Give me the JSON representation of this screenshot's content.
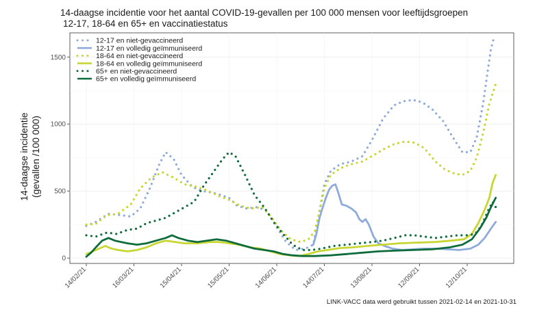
{
  "chart_data": {
    "type": "line",
    "title": "14-daagse incidentie voor het aantal COVID-19-gevallen per 100 000 mensen voor leeftijdsgroepen",
    "subtitle": "12-17, 18-64 en 65+ en vaccinatiestatus",
    "ylabel_line1": "14-daagse incidentie",
    "ylabel_line2": "(gevallen /100 000)",
    "xlabel": "",
    "caption": "LINK-VACC data werd gebruikt tussen 2021-02-14 en  2021-10-31",
    "xlim": [
      "2021-02-14",
      "2021-10-31"
    ],
    "ylim": [
      -40,
      1680
    ],
    "yticks": [
      0,
      500,
      1000,
      1500
    ],
    "xticks": [
      "2021-02-14",
      "2021-03-16",
      "2021-04-15",
      "2021-05-15",
      "2021-06-14",
      "2021-07-14",
      "2021-08-13",
      "2021-09-12",
      "2021-10-12"
    ],
    "xtick_labels": [
      "14/02/21",
      "16/03/21",
      "15/04/21",
      "15/05/21",
      "14/06/21",
      "14/07/21",
      "13/08/21",
      "12/09/21",
      "12/10/21"
    ],
    "grid": true,
    "legend_position": "top-left",
    "series": [
      {
        "name": "12-17 en niet-gevaccineerd",
        "color": "#8eaadb",
        "style": "dotted",
        "points": [
          [
            "2021-02-14",
            240
          ],
          [
            "2021-02-20",
            270
          ],
          [
            "2021-02-28",
            330
          ],
          [
            "2021-03-08",
            320
          ],
          [
            "2021-03-14",
            310
          ],
          [
            "2021-03-20",
            370
          ],
          [
            "2021-03-26",
            520
          ],
          [
            "2021-04-01",
            700
          ],
          [
            "2021-04-05",
            790
          ],
          [
            "2021-04-10",
            740
          ],
          [
            "2021-04-15",
            620
          ],
          [
            "2021-04-22",
            530
          ],
          [
            "2021-04-28",
            500
          ],
          [
            "2021-05-04",
            490
          ],
          [
            "2021-05-10",
            470
          ],
          [
            "2021-05-15",
            450
          ],
          [
            "2021-05-20",
            390
          ],
          [
            "2021-05-26",
            370
          ],
          [
            "2021-06-02",
            380
          ],
          [
            "2021-06-08",
            350
          ],
          [
            "2021-06-14",
            230
          ],
          [
            "2021-06-20",
            120
          ],
          [
            "2021-06-26",
            60
          ],
          [
            "2021-07-02",
            70
          ],
          [
            "2021-07-07",
            100
          ],
          [
            "2021-07-11",
            350
          ],
          [
            "2021-07-14",
            550
          ],
          [
            "2021-07-18",
            650
          ],
          [
            "2021-07-24",
            700
          ],
          [
            "2021-07-31",
            720
          ],
          [
            "2021-08-07",
            760
          ],
          [
            "2021-08-13",
            880
          ],
          [
            "2021-08-20",
            1040
          ],
          [
            "2021-08-27",
            1140
          ],
          [
            "2021-09-02",
            1170
          ],
          [
            "2021-09-08",
            1180
          ],
          [
            "2021-09-14",
            1160
          ],
          [
            "2021-09-20",
            1110
          ],
          [
            "2021-09-27",
            1020
          ],
          [
            "2021-10-03",
            900
          ],
          [
            "2021-10-09",
            790
          ],
          [
            "2021-10-14",
            790
          ],
          [
            "2021-10-18",
            900
          ],
          [
            "2021-10-22",
            1150
          ],
          [
            "2021-10-25",
            1400
          ],
          [
            "2021-10-27",
            1560
          ],
          [
            "2021-10-29",
            1650
          ]
        ]
      },
      {
        "name": "12-17 en volledig geïmmuniseerd",
        "color": "#8eaadb",
        "style": "solid",
        "points": [
          [
            "2021-07-07",
            100
          ],
          [
            "2021-07-09",
            180
          ],
          [
            "2021-07-11",
            300
          ],
          [
            "2021-07-13",
            380
          ],
          [
            "2021-07-15",
            450
          ],
          [
            "2021-07-17",
            510
          ],
          [
            "2021-07-19",
            540
          ],
          [
            "2021-07-21",
            550
          ],
          [
            "2021-07-23",
            480
          ],
          [
            "2021-07-25",
            400
          ],
          [
            "2021-07-28",
            390
          ],
          [
            "2021-07-31",
            370
          ],
          [
            "2021-08-03",
            340
          ],
          [
            "2021-08-05",
            290
          ],
          [
            "2021-08-07",
            270
          ],
          [
            "2021-08-09",
            290
          ],
          [
            "2021-08-11",
            250
          ],
          [
            "2021-08-14",
            160
          ],
          [
            "2021-08-17",
            110
          ],
          [
            "2021-08-21",
            90
          ],
          [
            "2021-08-26",
            70
          ],
          [
            "2021-09-01",
            60
          ],
          [
            "2021-09-08",
            65
          ],
          [
            "2021-09-15",
            70
          ],
          [
            "2021-09-22",
            70
          ],
          [
            "2021-09-30",
            65
          ],
          [
            "2021-10-07",
            60
          ],
          [
            "2021-10-14",
            70
          ],
          [
            "2021-10-19",
            100
          ],
          [
            "2021-10-23",
            150
          ],
          [
            "2021-10-27",
            220
          ],
          [
            "2021-10-30",
            270
          ]
        ]
      },
      {
        "name": "18-64 en niet-gevaccineerd",
        "color": "#c7d630",
        "style": "dotted",
        "points": [
          [
            "2021-02-14",
            250
          ],
          [
            "2021-02-20",
            255
          ],
          [
            "2021-02-27",
            320
          ],
          [
            "2021-03-06",
            330
          ],
          [
            "2021-03-14",
            400
          ],
          [
            "2021-03-20",
            520
          ],
          [
            "2021-03-27",
            600
          ],
          [
            "2021-04-03",
            640
          ],
          [
            "2021-04-10",
            600
          ],
          [
            "2021-04-17",
            550
          ],
          [
            "2021-04-25",
            530
          ],
          [
            "2021-05-02",
            500
          ],
          [
            "2021-05-09",
            460
          ],
          [
            "2021-05-16",
            430
          ],
          [
            "2021-05-22",
            390
          ],
          [
            "2021-05-29",
            370
          ],
          [
            "2021-06-05",
            380
          ],
          [
            "2021-06-11",
            300
          ],
          [
            "2021-06-17",
            200
          ],
          [
            "2021-06-23",
            140
          ],
          [
            "2021-06-29",
            120
          ],
          [
            "2021-07-04",
            140
          ],
          [
            "2021-07-08",
            200
          ],
          [
            "2021-07-11",
            350
          ],
          [
            "2021-07-14",
            520
          ],
          [
            "2021-07-18",
            620
          ],
          [
            "2021-07-24",
            670
          ],
          [
            "2021-07-31",
            700
          ],
          [
            "2021-08-07",
            720
          ],
          [
            "2021-08-13",
            760
          ],
          [
            "2021-08-20",
            810
          ],
          [
            "2021-08-27",
            850
          ],
          [
            "2021-09-03",
            870
          ],
          [
            "2021-09-09",
            860
          ],
          [
            "2021-09-15",
            820
          ],
          [
            "2021-09-22",
            720
          ],
          [
            "2021-09-28",
            660
          ],
          [
            "2021-10-04",
            630
          ],
          [
            "2021-10-09",
            620
          ],
          [
            "2021-10-14",
            650
          ],
          [
            "2021-10-18",
            750
          ],
          [
            "2021-10-22",
            930
          ],
          [
            "2021-10-26",
            1150
          ],
          [
            "2021-10-30",
            1300
          ]
        ]
      },
      {
        "name": "18-64 en volledig geïmmuniseerd",
        "color": "#c7d630",
        "style": "solid",
        "points": [
          [
            "2021-02-14",
            30
          ],
          [
            "2021-02-18",
            50
          ],
          [
            "2021-02-22",
            70
          ],
          [
            "2021-02-26",
            90
          ],
          [
            "2021-03-02",
            70
          ],
          [
            "2021-03-06",
            60
          ],
          [
            "2021-03-12",
            50
          ],
          [
            "2021-03-18",
            60
          ],
          [
            "2021-03-24",
            80
          ],
          [
            "2021-03-30",
            110
          ],
          [
            "2021-04-05",
            130
          ],
          [
            "2021-04-11",
            120
          ],
          [
            "2021-04-17",
            110
          ],
          [
            "2021-04-25",
            110
          ],
          [
            "2021-05-03",
            120
          ],
          [
            "2021-05-09",
            120
          ],
          [
            "2021-05-15",
            110
          ],
          [
            "2021-05-21",
            100
          ],
          [
            "2021-05-28",
            80
          ],
          [
            "2021-06-04",
            70
          ],
          [
            "2021-06-10",
            50
          ],
          [
            "2021-06-16",
            30
          ],
          [
            "2021-06-22",
            20
          ],
          [
            "2021-06-28",
            15
          ],
          [
            "2021-07-04",
            30
          ],
          [
            "2021-07-10",
            50
          ],
          [
            "2021-07-16",
            60
          ],
          [
            "2021-07-24",
            75
          ],
          [
            "2021-08-01",
            80
          ],
          [
            "2021-08-10",
            90
          ],
          [
            "2021-08-20",
            100
          ],
          [
            "2021-08-30",
            110
          ],
          [
            "2021-09-10",
            115
          ],
          [
            "2021-09-22",
            120
          ],
          [
            "2021-10-02",
            130
          ],
          [
            "2021-10-10",
            140
          ],
          [
            "2021-10-15",
            180
          ],
          [
            "2021-10-19",
            260
          ],
          [
            "2021-10-23",
            360
          ],
          [
            "2021-10-26",
            450
          ],
          [
            "2021-10-28",
            560
          ],
          [
            "2021-10-30",
            620
          ]
        ]
      },
      {
        "name": "65+ en niet-gevaccineerd",
        "color": "#0e6b3c",
        "style": "dotted",
        "points": [
          [
            "2021-02-14",
            170
          ],
          [
            "2021-02-20",
            160
          ],
          [
            "2021-02-27",
            190
          ],
          [
            "2021-03-05",
            180
          ],
          [
            "2021-03-12",
            210
          ],
          [
            "2021-03-18",
            220
          ],
          [
            "2021-03-24",
            260
          ],
          [
            "2021-03-30",
            280
          ],
          [
            "2021-04-05",
            300
          ],
          [
            "2021-04-11",
            340
          ],
          [
            "2021-04-17",
            380
          ],
          [
            "2021-04-23",
            420
          ],
          [
            "2021-04-29",
            540
          ],
          [
            "2021-05-05",
            640
          ],
          [
            "2021-05-11",
            740
          ],
          [
            "2021-05-15",
            790
          ],
          [
            "2021-05-19",
            760
          ],
          [
            "2021-05-25",
            620
          ],
          [
            "2021-05-31",
            470
          ],
          [
            "2021-06-06",
            380
          ],
          [
            "2021-06-12",
            270
          ],
          [
            "2021-06-18",
            180
          ],
          [
            "2021-06-24",
            100
          ],
          [
            "2021-06-30",
            60
          ],
          [
            "2021-07-06",
            60
          ],
          [
            "2021-07-12",
            70
          ],
          [
            "2021-07-20",
            90
          ],
          [
            "2021-07-28",
            100
          ],
          [
            "2021-08-05",
            110
          ],
          [
            "2021-08-13",
            120
          ],
          [
            "2021-08-20",
            130
          ],
          [
            "2021-08-27",
            150
          ],
          [
            "2021-09-03",
            170
          ],
          [
            "2021-09-09",
            170
          ],
          [
            "2021-09-15",
            160
          ],
          [
            "2021-09-22",
            150
          ],
          [
            "2021-09-29",
            160
          ],
          [
            "2021-10-06",
            170
          ],
          [
            "2021-10-12",
            170
          ],
          [
            "2021-10-17",
            180
          ],
          [
            "2021-10-21",
            240
          ],
          [
            "2021-10-25",
            350
          ],
          [
            "2021-10-28",
            420
          ],
          [
            "2021-10-30",
            380
          ]
        ]
      },
      {
        "name": "65+ en volledig geïmmuniseerd",
        "color": "#0e6b3c",
        "style": "solid",
        "points": [
          [
            "2021-02-14",
            10
          ],
          [
            "2021-02-17",
            40
          ],
          [
            "2021-02-20",
            80
          ],
          [
            "2021-02-24",
            130
          ],
          [
            "2021-02-28",
            150
          ],
          [
            "2021-03-04",
            130
          ],
          [
            "2021-03-08",
            120
          ],
          [
            "2021-03-12",
            110
          ],
          [
            "2021-03-18",
            100
          ],
          [
            "2021-03-24",
            110
          ],
          [
            "2021-03-30",
            130
          ],
          [
            "2021-04-05",
            150
          ],
          [
            "2021-04-09",
            170
          ],
          [
            "2021-04-13",
            150
          ],
          [
            "2021-04-19",
            130
          ],
          [
            "2021-04-25",
            120
          ],
          [
            "2021-05-01",
            130
          ],
          [
            "2021-05-07",
            140
          ],
          [
            "2021-05-13",
            130
          ],
          [
            "2021-05-19",
            110
          ],
          [
            "2021-05-25",
            90
          ],
          [
            "2021-05-31",
            70
          ],
          [
            "2021-06-06",
            60
          ],
          [
            "2021-06-12",
            50
          ],
          [
            "2021-06-18",
            30
          ],
          [
            "2021-06-24",
            20
          ],
          [
            "2021-06-30",
            15
          ],
          [
            "2021-07-08",
            15
          ],
          [
            "2021-07-18",
            20
          ],
          [
            "2021-07-28",
            30
          ],
          [
            "2021-08-07",
            40
          ],
          [
            "2021-08-17",
            50
          ],
          [
            "2021-08-27",
            55
          ],
          [
            "2021-09-08",
            60
          ],
          [
            "2021-09-20",
            65
          ],
          [
            "2021-10-01",
            80
          ],
          [
            "2021-10-09",
            100
          ],
          [
            "2021-10-15",
            140
          ],
          [
            "2021-10-20",
            220
          ],
          [
            "2021-10-24",
            300
          ],
          [
            "2021-10-27",
            380
          ],
          [
            "2021-10-30",
            450
          ]
        ]
      }
    ]
  }
}
